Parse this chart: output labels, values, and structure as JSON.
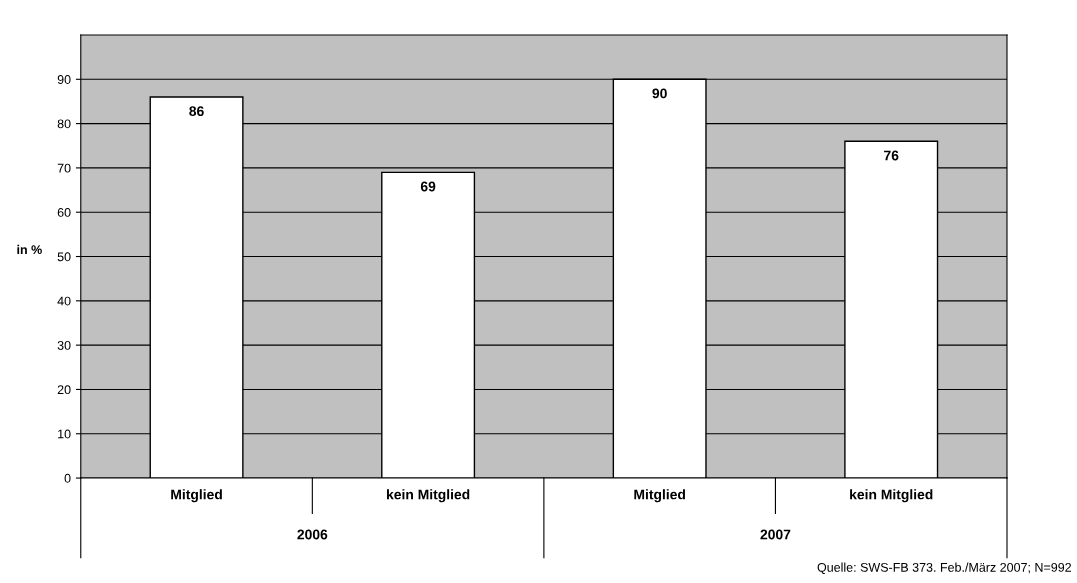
{
  "chart_data": {
    "type": "bar",
    "ylabel": "in %",
    "categories": [
      "Mitglied",
      "kein Mitglied",
      "Mitglied",
      "kein Mitglied"
    ],
    "values": [
      86,
      69,
      90,
      76
    ],
    "color": "#ffffff",
    "ylim": [
      0,
      100
    ],
    "yticks": [
      0,
      10,
      20,
      30,
      40,
      50,
      60,
      70,
      80,
      90
    ],
    "grid": "y",
    "data_labels": true,
    "annotations": [
      "2006",
      "2007",
      "Quelle: SWS-FB 373. Feb./März 2007; N=992"
    ]
  }
}
